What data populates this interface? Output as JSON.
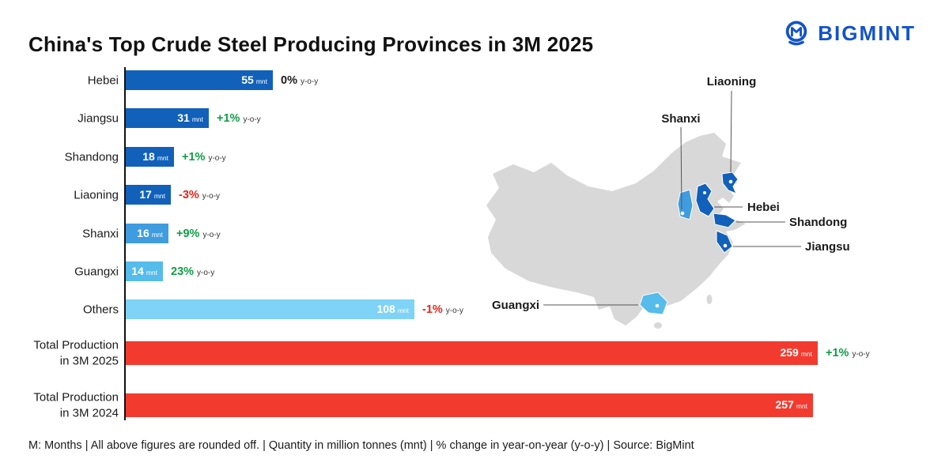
{
  "title": "China's Top Crude Steel Producing Provinces in 3M 2025",
  "logo": {
    "text": "BIGMINT"
  },
  "colors": {
    "dark_blue": "#1161ba",
    "mid_blue": "#3f9ddf",
    "light_blue": "#55bceb",
    "sky_blue": "#7fd3f6",
    "red": "#f23b2e",
    "green_text": "#0f9d45",
    "red_text": "#e8231a",
    "black_text": "#1a1a1a",
    "map_gray": "#d8d8d8",
    "logo_blue": "#1353cb"
  },
  "chart_data": {
    "type": "bar",
    "orientation": "horizontal",
    "unit": "mnt",
    "pct_suffix": "y-o-y",
    "xlim": [
      0,
      259
    ],
    "rows": [
      {
        "label": "Hebei",
        "value": 55,
        "pct": "0%",
        "pct_sentiment": "neutral",
        "color": "dark_blue"
      },
      {
        "label": "Jiangsu",
        "value": 31,
        "pct": "+1%",
        "pct_sentiment": "positive",
        "color": "dark_blue"
      },
      {
        "label": "Shandong",
        "value": 18,
        "pct": "+1%",
        "pct_sentiment": "positive",
        "color": "dark_blue"
      },
      {
        "label": "Liaoning",
        "value": 17,
        "pct": "-3%",
        "pct_sentiment": "negative",
        "color": "dark_blue"
      },
      {
        "label": "Shanxi",
        "value": 16,
        "pct": "+9%",
        "pct_sentiment": "positive",
        "color": "mid_blue"
      },
      {
        "label": "Guangxi",
        "value": 14,
        "pct": "23%",
        "pct_sentiment": "positive",
        "color": "light_blue"
      },
      {
        "label": "Others",
        "value": 108,
        "pct": "-1%",
        "pct_sentiment": "negative",
        "color": "sky_blue"
      },
      {
        "label": "Total Production in 3M 2025",
        "label_lines": [
          "Total Production",
          "in 3M 2025"
        ],
        "value": 259,
        "pct": "+1%",
        "pct_sentiment": "positive",
        "color": "red"
      },
      {
        "label": "Total Production in 3M 2024",
        "label_lines": [
          "Total Production",
          "in 3M 2024"
        ],
        "value": 257,
        "pct": null,
        "color": "red"
      }
    ]
  },
  "map": {
    "labels": {
      "liaoning": "Liaoning",
      "shanxi": "Shanxi",
      "hebei": "Hebei",
      "shandong": "Shandong",
      "jiangsu": "Jiangsu",
      "guangxi": "Guangxi"
    }
  },
  "footer": "M: Months  |  All above figures are rounded off. | Quantity in million tonnes (mnt) | % change in year-on-year (y-o-y) | Source: BigMint"
}
